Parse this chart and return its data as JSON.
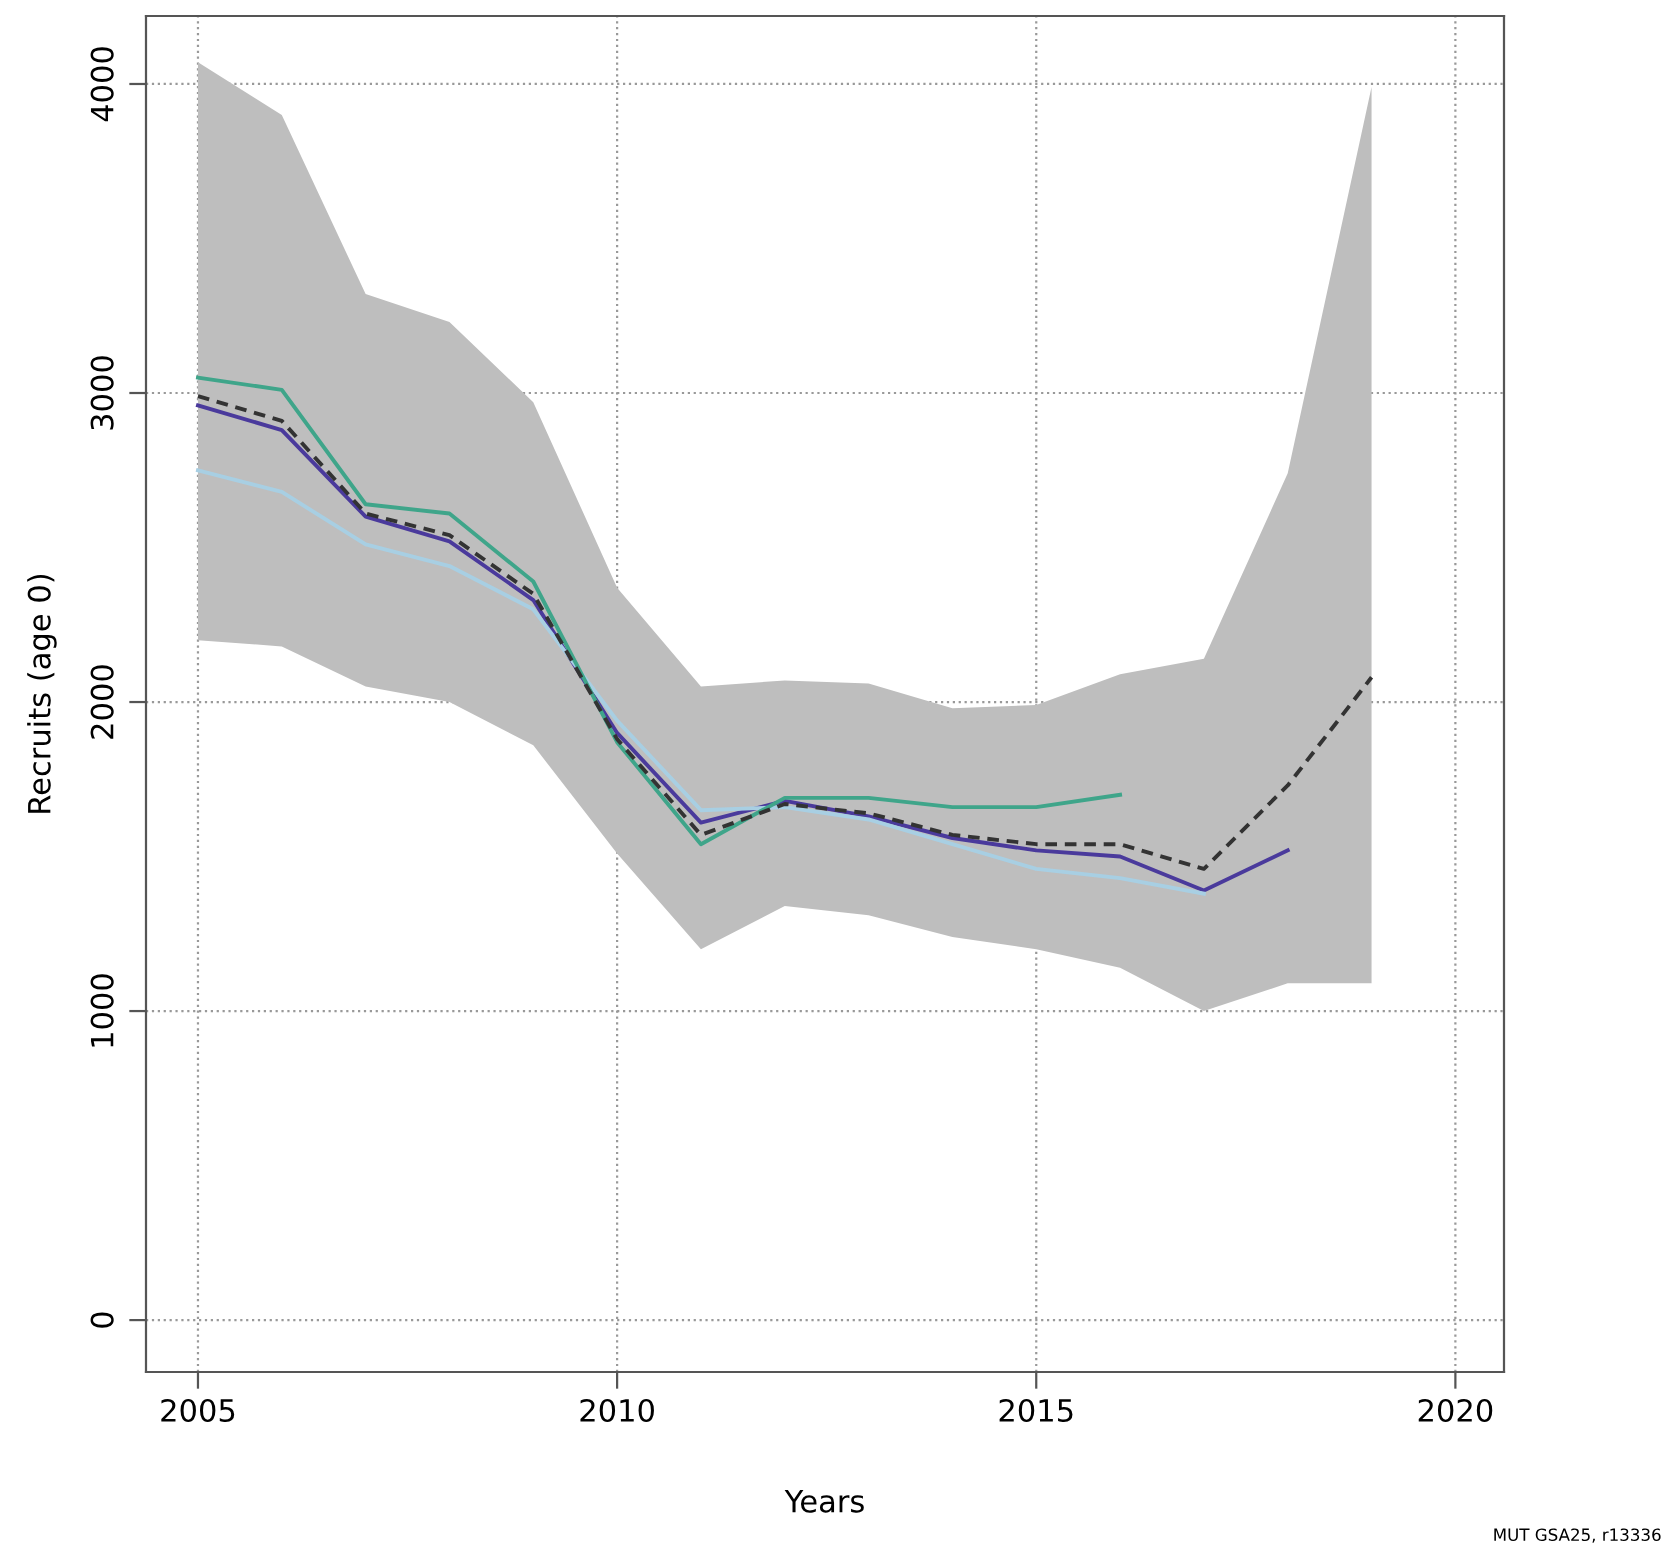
{
  "chart_data": {
    "type": "line",
    "xlabel": "Years",
    "ylabel": "Recruits (age 0)",
    "annotations": [
      "MUT GSA25, r13336"
    ],
    "xlim": [
      2004.38,
      2020.58
    ],
    "ylim": [
      -168,
      4220
    ],
    "xticks": [
      2005,
      2010,
      2015,
      2020
    ],
    "yticks": [
      0,
      1000,
      2000,
      3000,
      4000
    ],
    "grid": true,
    "line_style": "solid",
    "series": [
      {
        "color": "#333333",
        "line_style": "dashed",
        "x": [
          2005,
          2006,
          2007,
          2008,
          2009,
          2010,
          2011,
          2012,
          2013,
          2014,
          2015,
          2016,
          2017,
          2018,
          2019
        ],
        "values": [
          2990,
          2910,
          2610,
          2540,
          2350,
          1880,
          1570,
          1670,
          1640,
          1570,
          1540,
          1540,
          1460,
          1730,
          2080
        ],
        "lower": [
          2200,
          2180,
          2050,
          2000,
          1860,
          1510,
          1200,
          1340,
          1310,
          1240,
          1200,
          1140,
          1000,
          1090,
          1090
        ],
        "upper": [
          4070,
          3900,
          3320,
          3230,
          2970,
          2370,
          2050,
          2070,
          2060,
          1980,
          1990,
          2090,
          2140,
          2740,
          3990
        ]
      },
      {
        "color": "#3fa58a",
        "x": [
          2005,
          2006,
          2007,
          2008,
          2009,
          2010,
          2011,
          2012,
          2013,
          2014,
          2015,
          2016
        ],
        "values": [
          3050,
          3010,
          2640,
          2610,
          2390,
          1870,
          1540,
          1690,
          1690,
          1660,
          1660,
          1700
        ]
      },
      {
        "color": "#a8cfe3",
        "x": [
          2005,
          2006,
          2007,
          2008,
          2009,
          2010,
          2011,
          2012,
          2013,
          2014,
          2015,
          2016,
          2017
        ],
        "values": [
          2750,
          2680,
          2510,
          2440,
          2300,
          1940,
          1650,
          1660,
          1620,
          1540,
          1460,
          1430,
          1380
        ]
      },
      {
        "color": "#4a3a9c",
        "x": [
          2005,
          2006,
          2007,
          2008,
          2009,
          2010,
          2011,
          2012,
          2013,
          2014,
          2015,
          2016,
          2017,
          2018
        ],
        "values": [
          2960,
          2880,
          2600,
          2520,
          2330,
          1900,
          1610,
          1680,
          1630,
          1560,
          1520,
          1500,
          1390,
          1520
        ]
      }
    ]
  }
}
